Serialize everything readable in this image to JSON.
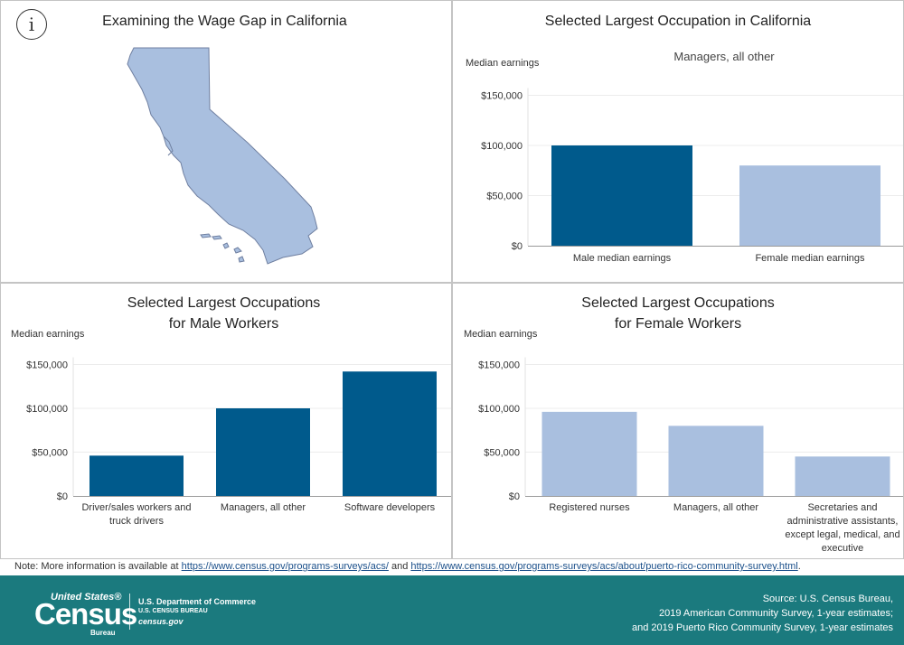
{
  "panels": {
    "map": {
      "title": "Examining the Wage Gap in California"
    },
    "state_chart": {
      "title": "Selected Largest Occupation in California",
      "subtitle": "Managers, all other",
      "ylabel": "Median earnings"
    },
    "male_chart": {
      "title_line1": "Selected Largest Occupations",
      "title_line2": "for Male Workers",
      "ylabel": "Median earnings"
    },
    "female_chart": {
      "title_line1": "Selected Largest Occupations",
      "title_line2": "for Female Workers",
      "ylabel": "Median earnings"
    }
  },
  "info_icon": "info-icon",
  "note": {
    "prefix": "Note: More information is available at ",
    "link1": "https://www.census.gov/programs-surveys/acs/",
    "middle": " and ",
    "link2": "https://www.census.gov/programs-surveys/acs/about/puerto-rico-community-survey.html",
    "suffix": "."
  },
  "footer": {
    "logo_top": "United States®",
    "logo_main": "Census",
    "logo_sub": "Bureau",
    "dept_line1": "U.S. Department of Commerce",
    "dept_line2": "U.S. CENSUS BUREAU",
    "dept_line3": "census.gov",
    "source_line1": "Source: U.S. Census Bureau,",
    "source_line2": "2019 American Community Survey, 1-year estimates;",
    "source_line3": "and 2019 Puerto Rico Community Survey, 1-year estimates"
  },
  "colors": {
    "male": "#005a8c",
    "female": "#a9bfdf",
    "map_fill": "#a9bfdf",
    "footer": "#1b7a7e"
  },
  "chart_data": [
    {
      "type": "bar",
      "id": "state",
      "title": "Selected Largest Occupation in California",
      "subtitle": "Managers, all other",
      "ylabel": "Median earnings",
      "categories": [
        "Male median earnings",
        "Female median earnings"
      ],
      "values": [
        100000,
        80000
      ],
      "bar_colors": [
        "#005a8c",
        "#a9bfdf"
      ],
      "ylim": [
        0,
        165000
      ],
      "yticks": [
        0,
        50000,
        100000,
        150000
      ],
      "ytick_labels": [
        "$0",
        "$50,000",
        "$100,000",
        "$150,000"
      ],
      "grid": true
    },
    {
      "type": "bar",
      "id": "male",
      "title": "Selected Largest Occupations for Male Workers",
      "ylabel": "Median earnings",
      "categories": [
        [
          "Driver/sales workers and",
          "truck drivers"
        ],
        [
          "Managers, all other"
        ],
        [
          "Software developers"
        ]
      ],
      "values": [
        46000,
        100000,
        142000
      ],
      "bar_colors": [
        "#005a8c",
        "#005a8c",
        "#005a8c"
      ],
      "ylim": [
        0,
        165000
      ],
      "yticks": [
        0,
        50000,
        100000,
        150000
      ],
      "ytick_labels": [
        "$0",
        "$50,000",
        "$100,000",
        "$150,000"
      ],
      "grid": true
    },
    {
      "type": "bar",
      "id": "female",
      "title": "Selected Largest Occupations for Female Workers",
      "ylabel": "Median earnings",
      "categories": [
        [
          "Registered nurses"
        ],
        [
          "Managers, all other"
        ],
        [
          "Secretaries and",
          "administrative assistants,",
          "except legal, medical, and",
          "executive"
        ]
      ],
      "values": [
        96000,
        80000,
        45000
      ],
      "bar_colors": [
        "#a9bfdf",
        "#a9bfdf",
        "#a9bfdf"
      ],
      "ylim": [
        0,
        165000
      ],
      "yticks": [
        0,
        50000,
        100000,
        150000
      ],
      "ytick_labels": [
        "$0",
        "$50,000",
        "$100,000",
        "$150,000"
      ],
      "grid": true
    }
  ]
}
